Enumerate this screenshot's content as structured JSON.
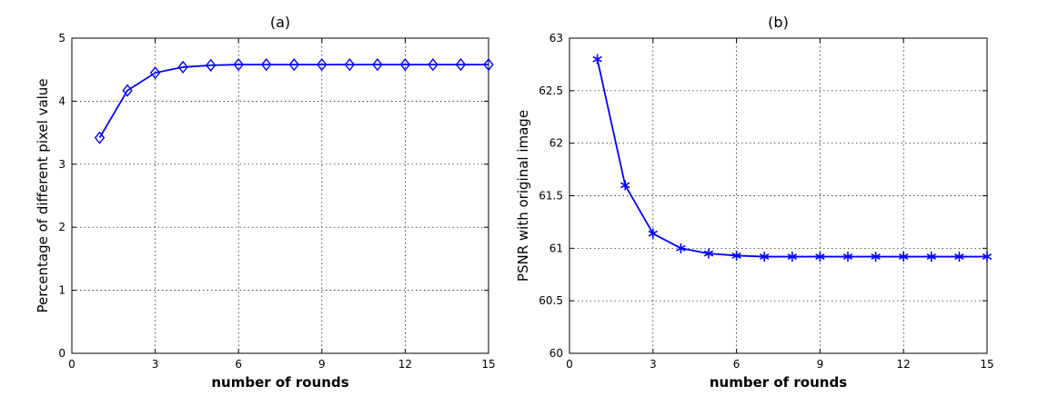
{
  "chart_data": [
    {
      "type": "line",
      "title": "(a)",
      "xlabel": "number of rounds",
      "ylabel": "Percentage of different pixel value",
      "xlim": [
        0,
        15
      ],
      "ylim": [
        0,
        5
      ],
      "xticks": [
        0,
        3,
        6,
        9,
        12,
        15
      ],
      "yticks": [
        0,
        1,
        2,
        3,
        4,
        5
      ],
      "xtick_labels": [
        "0",
        "3",
        "6",
        "9",
        "12",
        "15"
      ],
      "ytick_labels": [
        "0",
        "1",
        "2",
        "3",
        "4",
        "5"
      ],
      "grid": true,
      "marker": "diamond",
      "color": "#0000ff",
      "x": [
        1,
        2,
        3,
        4,
        5,
        6,
        7,
        8,
        9,
        10,
        11,
        12,
        13,
        14,
        15
      ],
      "y": [
        3.42,
        4.17,
        4.45,
        4.54,
        4.57,
        4.58,
        4.58,
        4.58,
        4.58,
        4.58,
        4.58,
        4.58,
        4.58,
        4.58,
        4.58
      ]
    },
    {
      "type": "line",
      "title": "(b)",
      "xlabel": "number of rounds",
      "ylabel": "PSNR with original image",
      "xlim": [
        0,
        15
      ],
      "ylim": [
        60,
        63
      ],
      "xticks": [
        0,
        3,
        6,
        9,
        12,
        15
      ],
      "yticks": [
        60,
        60.5,
        61,
        61.5,
        62,
        62.5,
        63
      ],
      "xtick_labels": [
        "0",
        "3",
        "6",
        "9",
        "12",
        "15"
      ],
      "ytick_labels": [
        "60",
        "60.5",
        "61",
        "61.5",
        "62",
        "62.5",
        "63"
      ],
      "grid": true,
      "marker": "asterisk",
      "color": "#0000ff",
      "x": [
        1,
        2,
        3,
        4,
        5,
        6,
        7,
        8,
        9,
        10,
        11,
        12,
        13,
        14,
        15
      ],
      "y": [
        62.8,
        61.6,
        61.14,
        61.0,
        60.95,
        60.93,
        60.92,
        60.92,
        60.92,
        60.92,
        60.92,
        60.92,
        60.92,
        60.92,
        60.92
      ]
    }
  ]
}
